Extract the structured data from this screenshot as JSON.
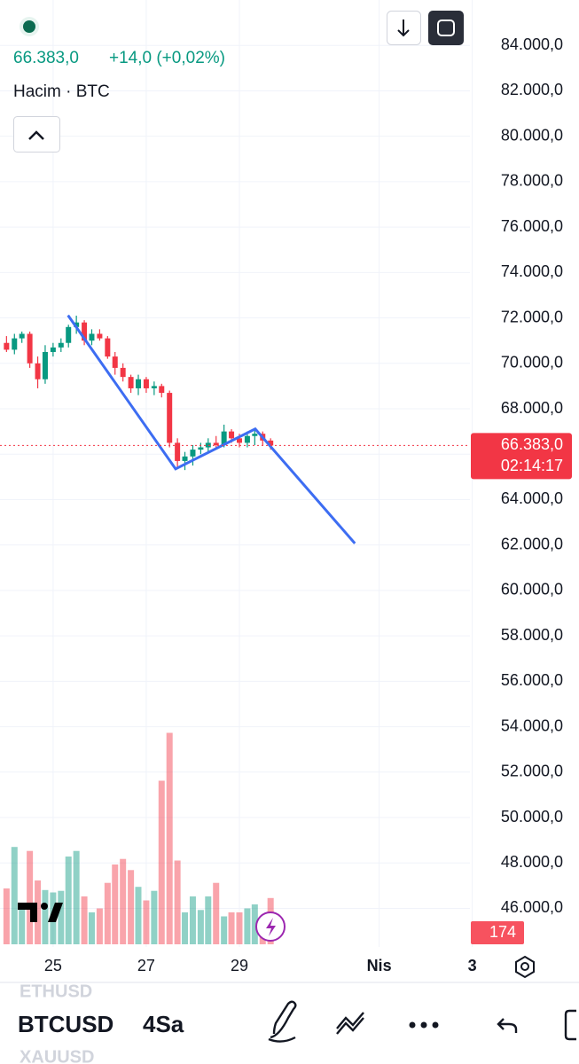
{
  "header": {
    "change": "+14,0 (+0,02%)",
    "volume_title": "Hacim · BTC"
  },
  "chart_data": {
    "type": "candlestick",
    "x": [
      24,
      24.17,
      24.33,
      24.5,
      24.67,
      24.83,
      25,
      25.17,
      25.33,
      25.5,
      25.67,
      25.83,
      26,
      26.17,
      26.33,
      26.5,
      26.67,
      26.83,
      27,
      27.17,
      27.33,
      27.5,
      27.67,
      27.83,
      28,
      28.17,
      28.33,
      28.5,
      28.67,
      28.83,
      29,
      29.17,
      29.33,
      29.5,
      29.67
    ],
    "open": [
      70900,
      70600,
      71100,
      71300,
      70000,
      69300,
      70500,
      70700,
      70900,
      71600,
      71800,
      71000,
      71300,
      71100,
      70300,
      69800,
      69400,
      68900,
      69300,
      68900,
      69000,
      68700,
      66500,
      65700,
      65900,
      66200,
      66300,
      66500,
      66400,
      67000,
      66700,
      66500,
      66800,
      66900,
      66600
    ],
    "high": [
      71200,
      71300,
      71400,
      71400,
      70300,
      70800,
      70900,
      71100,
      71700,
      72100,
      71900,
      71500,
      71500,
      71200,
      70500,
      70000,
      69500,
      69500,
      69400,
      69200,
      69100,
      68800,
      66700,
      66100,
      66400,
      66500,
      66700,
      66800,
      67300,
      67100,
      66900,
      67000,
      67100,
      67000,
      66700
    ],
    "low": [
      70500,
      70400,
      70900,
      69800,
      68900,
      69100,
      70300,
      70500,
      70700,
      71300,
      70800,
      70800,
      71000,
      70200,
      69500,
      69200,
      68700,
      68600,
      68700,
      68600,
      68500,
      66300,
      65400,
      65300,
      65500,
      66000,
      66100,
      66200,
      66300,
      66500,
      66300,
      66300,
      66400,
      66400,
      66200
    ],
    "close": [
      70600,
      71100,
      71300,
      70000,
      69300,
      70500,
      70700,
      70900,
      71600,
      71800,
      71000,
      71300,
      71100,
      70300,
      69800,
      69400,
      68900,
      69300,
      68900,
      69000,
      68700,
      66500,
      65700,
      65900,
      66200,
      66300,
      66500,
      66400,
      67000,
      66700,
      66500,
      66800,
      66900,
      66600,
      66383
    ],
    "volume": {
      "values": [
        210,
        366,
        135,
        351,
        240,
        204,
        195,
        201,
        330,
        351,
        180,
        120,
        135,
        231,
        300,
        321,
        279,
        216,
        165,
        201,
        615,
        795,
        315,
        120,
        180,
        129,
        180,
        231,
        105,
        120,
        120,
        135,
        150,
        105,
        174
      ],
      "lim": [
        0,
        900
      ]
    },
    "up_color": "#089981",
    "down_color": "#f23645",
    "drawing": {
      "x": [
        25.32,
        27.63,
        29.34,
        31.48
      ],
      "y": [
        72115,
        65352,
        67113,
        62070
      ],
      "color": "#3d6df2"
    },
    "last_price": {
      "value": 66383,
      "label": "66.383,0"
    },
    "countdown": "02:14:17",
    "xlim": [
      23.86,
      33.95
    ],
    "ylim": [
      44300,
      86000
    ],
    "xticks": [
      25,
      27,
      29,
      {
        "value": 32,
        "label": "Nis"
      },
      {
        "value": 34,
        "label": "3"
      }
    ],
    "yticks": [
      {
        "value": 84000,
        "label": "84.000,0"
      },
      {
        "value": 82000,
        "label": "82.000,0"
      },
      {
        "value": 80000,
        "label": "80.000,0"
      },
      {
        "value": 78000,
        "label": "78.000,0"
      },
      {
        "value": 76000,
        "label": "76.000,0"
      },
      {
        "value": 74000,
        "label": "74.000,0"
      },
      {
        "value": 72000,
        "label": "72.000,0"
      },
      {
        "value": 70000,
        "label": "70.000,0"
      },
      {
        "value": 68000,
        "label": "68.000,0"
      },
      {
        "value": 66000,
        "label": "66.000,0"
      },
      {
        "value": 64000,
        "label": "64.000,0"
      },
      {
        "value": 62000,
        "label": "62.000,0"
      },
      {
        "value": 60000,
        "label": "60.000,0"
      },
      {
        "value": 58000,
        "label": "58.000,0"
      },
      {
        "value": 56000,
        "label": "56.000,0"
      },
      {
        "value": 54000,
        "label": "54.000,0"
      },
      {
        "value": 52000,
        "label": "52.000,0"
      },
      {
        "value": 50000,
        "label": "50.000,0"
      },
      {
        "value": 48000,
        "label": "48.000,0"
      },
      {
        "value": 46000,
        "label": "46.000,0"
      }
    ],
    "grid": true
  },
  "footer": {
    "symbol_above": "ETHUSD",
    "symbol": "BTCUSD",
    "interval": "4Sa",
    "symbol_below": "XAUUSD"
  }
}
